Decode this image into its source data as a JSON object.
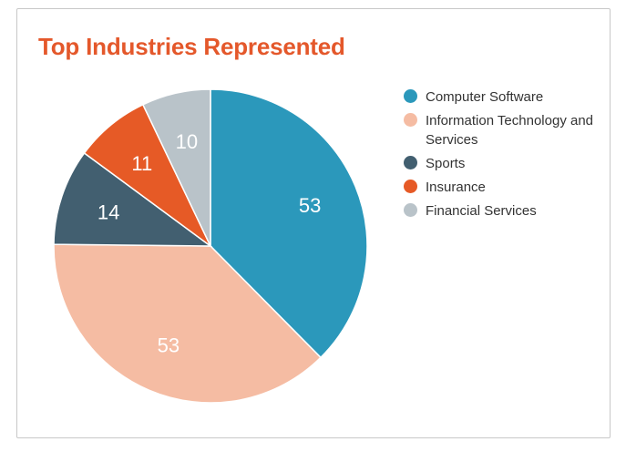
{
  "card": {
    "title": "Top Industries Represented",
    "title_color": "#e4582b"
  },
  "chart_data": {
    "type": "pie",
    "title": "Top Industries Represented",
    "slices": [
      {
        "label": "Computer Software",
        "value": 53,
        "color": "#2b98bb"
      },
      {
        "label": "Information Technology and Services",
        "value": 53,
        "color": "#f5bca3"
      },
      {
        "label": "Sports",
        "value": 14,
        "color": "#425f70"
      },
      {
        "label": "Insurance",
        "value": 11,
        "color": "#e65a26"
      },
      {
        "label": "Financial Services",
        "value": 10,
        "color": "#b9c3c9"
      }
    ],
    "start_angle": "12 o'clock",
    "direction": "clockwise",
    "legend_position": "right"
  }
}
